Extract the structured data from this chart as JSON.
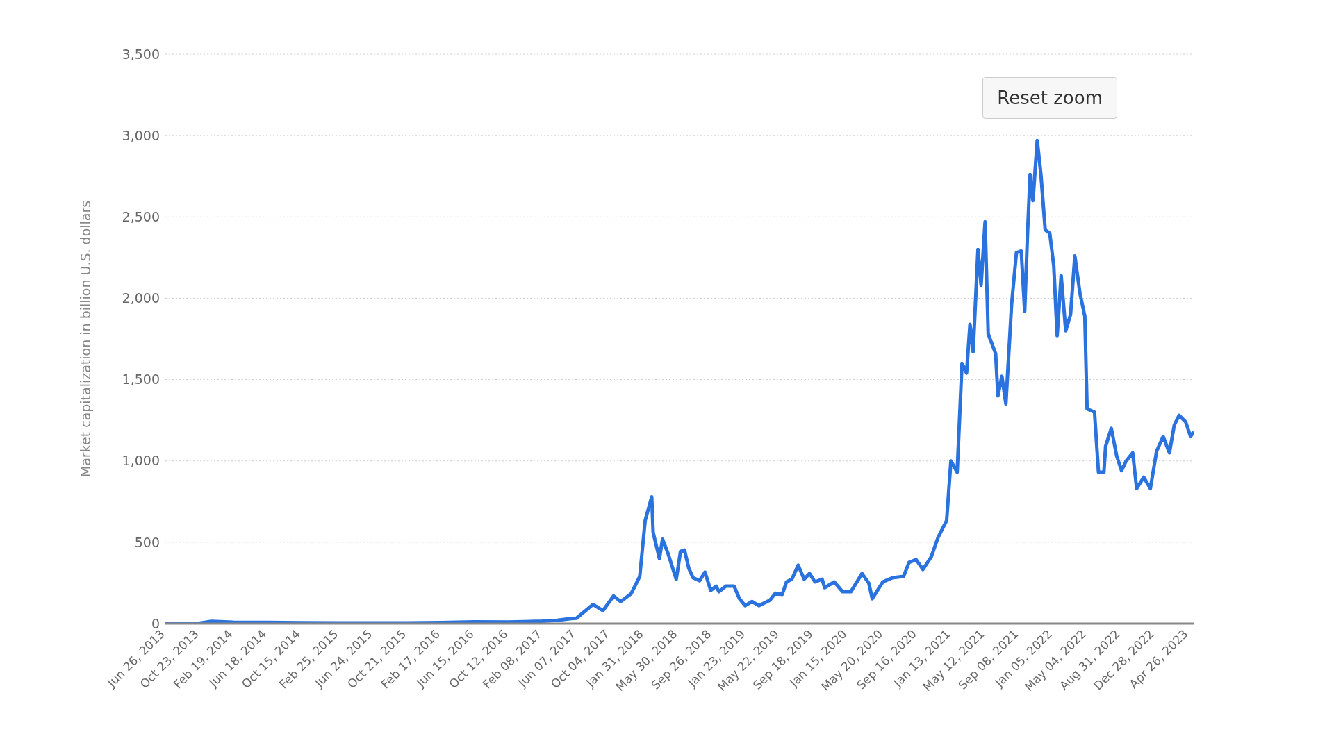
{
  "chart_data": {
    "type": "line",
    "ylabel": "Market capitalization in billion U.S. dollars",
    "annotations": [
      "Reset zoom"
    ],
    "x": [
      "2013-06-26",
      "2013-10-23",
      "2013-12-04",
      "2014-02-19",
      "2014-06-18",
      "2014-10-15",
      "2015-02-25",
      "2015-10-21",
      "2016-02-17",
      "2016-06-15",
      "2016-10-12",
      "2017-02-08",
      "2017-04-01",
      "2017-05-15",
      "2017-06-08",
      "2017-08-05",
      "2017-09-09",
      "2017-10-16",
      "2017-11-10",
      "2017-12-17",
      "2018-01-16",
      "2018-02-04",
      "2018-02-27",
      "2018-03-04",
      "2018-03-26",
      "2018-04-06",
      "2018-04-26",
      "2018-05-24",
      "2018-06-08",
      "2018-06-22",
      "2018-07-07",
      "2018-07-22",
      "2018-08-14",
      "2018-09-02",
      "2018-09-22",
      "2018-10-11",
      "2018-10-21",
      "2018-11-14",
      "2018-12-13",
      "2019-01-01",
      "2019-01-21",
      "2019-02-14",
      "2019-03-10",
      "2019-04-18",
      "2019-05-07",
      "2019-05-31",
      "2019-06-15",
      "2019-07-04",
      "2019-07-26",
      "2019-08-16",
      "2019-09-04",
      "2019-09-23",
      "2019-10-18",
      "2019-10-27",
      "2019-11-30",
      "2019-12-29",
      "2020-01-27",
      "2020-03-06",
      "2020-03-30",
      "2020-04-11",
      "2020-05-18",
      "2020-06-21",
      "2020-07-30",
      "2020-08-18",
      "2020-09-12",
      "2020-10-06",
      "2020-11-04",
      "2020-11-28",
      "2020-12-28",
      "2021-01-12",
      "2021-02-03",
      "2021-02-20",
      "2021-03-08",
      "2021-03-20",
      "2021-03-31",
      "2021-04-17",
      "2021-04-28",
      "2021-05-12",
      "2021-05-23",
      "2021-06-18",
      "2021-06-26",
      "2021-07-10",
      "2021-07-24",
      "2021-08-13",
      "2021-08-30",
      "2021-09-16",
      "2021-09-28",
      "2021-10-08",
      "2021-10-17",
      "2021-10-27",
      "2021-11-11",
      "2021-11-24",
      "2021-12-09",
      "2021-12-25",
      "2022-01-08",
      "2022-01-20",
      "2022-02-03",
      "2022-02-19",
      "2022-03-08",
      "2022-03-23",
      "2022-04-10",
      "2022-04-27",
      "2022-05-05",
      "2022-05-31",
      "2022-06-14",
      "2022-07-03",
      "2022-07-09",
      "2022-07-29",
      "2022-08-17",
      "2022-09-03",
      "2022-09-19",
      "2022-10-12",
      "2022-10-26",
      "2022-11-20",
      "2022-12-13",
      "2023-01-04",
      "2023-01-27",
      "2023-02-18",
      "2023-03-07",
      "2023-03-24",
      "2023-04-16",
      "2023-05-03",
      "2023-05-14"
    ],
    "series": [
      {
        "color": "#2a72de",
        "values": [
          1,
          2,
          14,
          9,
          8,
          5,
          4,
          4,
          6,
          11,
          10,
          15,
          20,
          30,
          33,
          118,
          80,
          170,
          135,
          185,
          290,
          633,
          779,
          560,
          400,
          519,
          427,
          272,
          443,
          452,
          341,
          282,
          264,
          316,
          204,
          230,
          196,
          230,
          230,
          153,
          110,
          136,
          110,
          144,
          187,
          179,
          256,
          273,
          359,
          273,
          308,
          256,
          273,
          221,
          256,
          196,
          196,
          308,
          248,
          153,
          256,
          282,
          290,
          376,
          393,
          333,
          410,
          530,
          633,
          1000,
          930,
          1600,
          1540,
          1840,
          1670,
          2300,
          2080,
          2470,
          1780,
          1660,
          1400,
          1520,
          1350,
          1960,
          2280,
          2290,
          1920,
          2400,
          2760,
          2600,
          2970,
          2760,
          2420,
          2400,
          2200,
          1770,
          2140,
          1800,
          1900,
          2260,
          2030,
          1890,
          1320,
          1300,
          930,
          930,
          1090,
          1200,
          1030,
          940,
          1000,
          1050,
          830,
          900,
          830,
          1060,
          1150,
          1050,
          1220,
          1280,
          1240,
          1150,
          1180
        ]
      }
    ],
    "xlim": [
      "2013-06-26",
      "2023-05-14"
    ],
    "xticks": [
      {
        "value": "2013-06-26",
        "label": "Jun 26, 2013"
      },
      {
        "value": "2013-10-23",
        "label": "Oct 23, 2013"
      },
      {
        "value": "2014-02-19",
        "label": "Feb 19, 2014"
      },
      {
        "value": "2014-06-18",
        "label": "Jun 18, 2014"
      },
      {
        "value": "2014-10-15",
        "label": "Oct 15, 2014"
      },
      {
        "value": "2015-02-25",
        "label": "Feb 25, 2015"
      },
      {
        "value": "2015-06-24",
        "label": "Jun 24, 2015"
      },
      {
        "value": "2015-10-21",
        "label": "Oct 21, 2015"
      },
      {
        "value": "2016-02-17",
        "label": "Feb 17, 2016"
      },
      {
        "value": "2016-06-15",
        "label": "Jun 15, 2016"
      },
      {
        "value": "2016-10-12",
        "label": "Oct 12, 2016"
      },
      {
        "value": "2017-02-08",
        "label": "Feb 08, 2017"
      },
      {
        "value": "2017-06-07",
        "label": "Jun 07, 2017"
      },
      {
        "value": "2017-10-04",
        "label": "Oct 04, 2017"
      },
      {
        "value": "2018-01-31",
        "label": "Jan 31, 2018"
      },
      {
        "value": "2018-05-30",
        "label": "May 30, 2018"
      },
      {
        "value": "2018-09-26",
        "label": "Sep 26, 2018"
      },
      {
        "value": "2019-01-23",
        "label": "Jan 23, 2019"
      },
      {
        "value": "2019-05-22",
        "label": "May 22, 2019"
      },
      {
        "value": "2019-09-18",
        "label": "Sep 18, 2019"
      },
      {
        "value": "2020-01-15",
        "label": "Jan 15, 2020"
      },
      {
        "value": "2020-05-20",
        "label": "May 20, 2020"
      },
      {
        "value": "2020-09-16",
        "label": "Sep 16, 2020"
      },
      {
        "value": "2021-01-13",
        "label": "Jan 13, 2021"
      },
      {
        "value": "2021-05-12",
        "label": "May 12, 2021"
      },
      {
        "value": "2021-09-08",
        "label": "Sep 08, 2021"
      },
      {
        "value": "2022-01-05",
        "label": "Jan 05, 2022"
      },
      {
        "value": "2022-05-04",
        "label": "May 04, 2022"
      },
      {
        "value": "2022-08-31",
        "label": "Aug 31, 2022"
      },
      {
        "value": "2022-12-28",
        "label": "Dec 28, 2022"
      },
      {
        "value": "2023-04-26",
        "label": "Apr 26, 2023"
      }
    ],
    "ylim": [
      0,
      3500
    ],
    "yticks": [
      0,
      500,
      {
        "value": 1000,
        "label": "1,000"
      },
      {
        "value": 1500,
        "label": "1,500"
      },
      {
        "value": 2000,
        "label": "2,000"
      },
      {
        "value": 2500,
        "label": "2,500"
      },
      {
        "value": 3000,
        "label": "3,000"
      },
      {
        "value": 3500,
        "label": "3,500"
      }
    ],
    "grid": "y",
    "marker": "none",
    "line_style": "solid"
  }
}
